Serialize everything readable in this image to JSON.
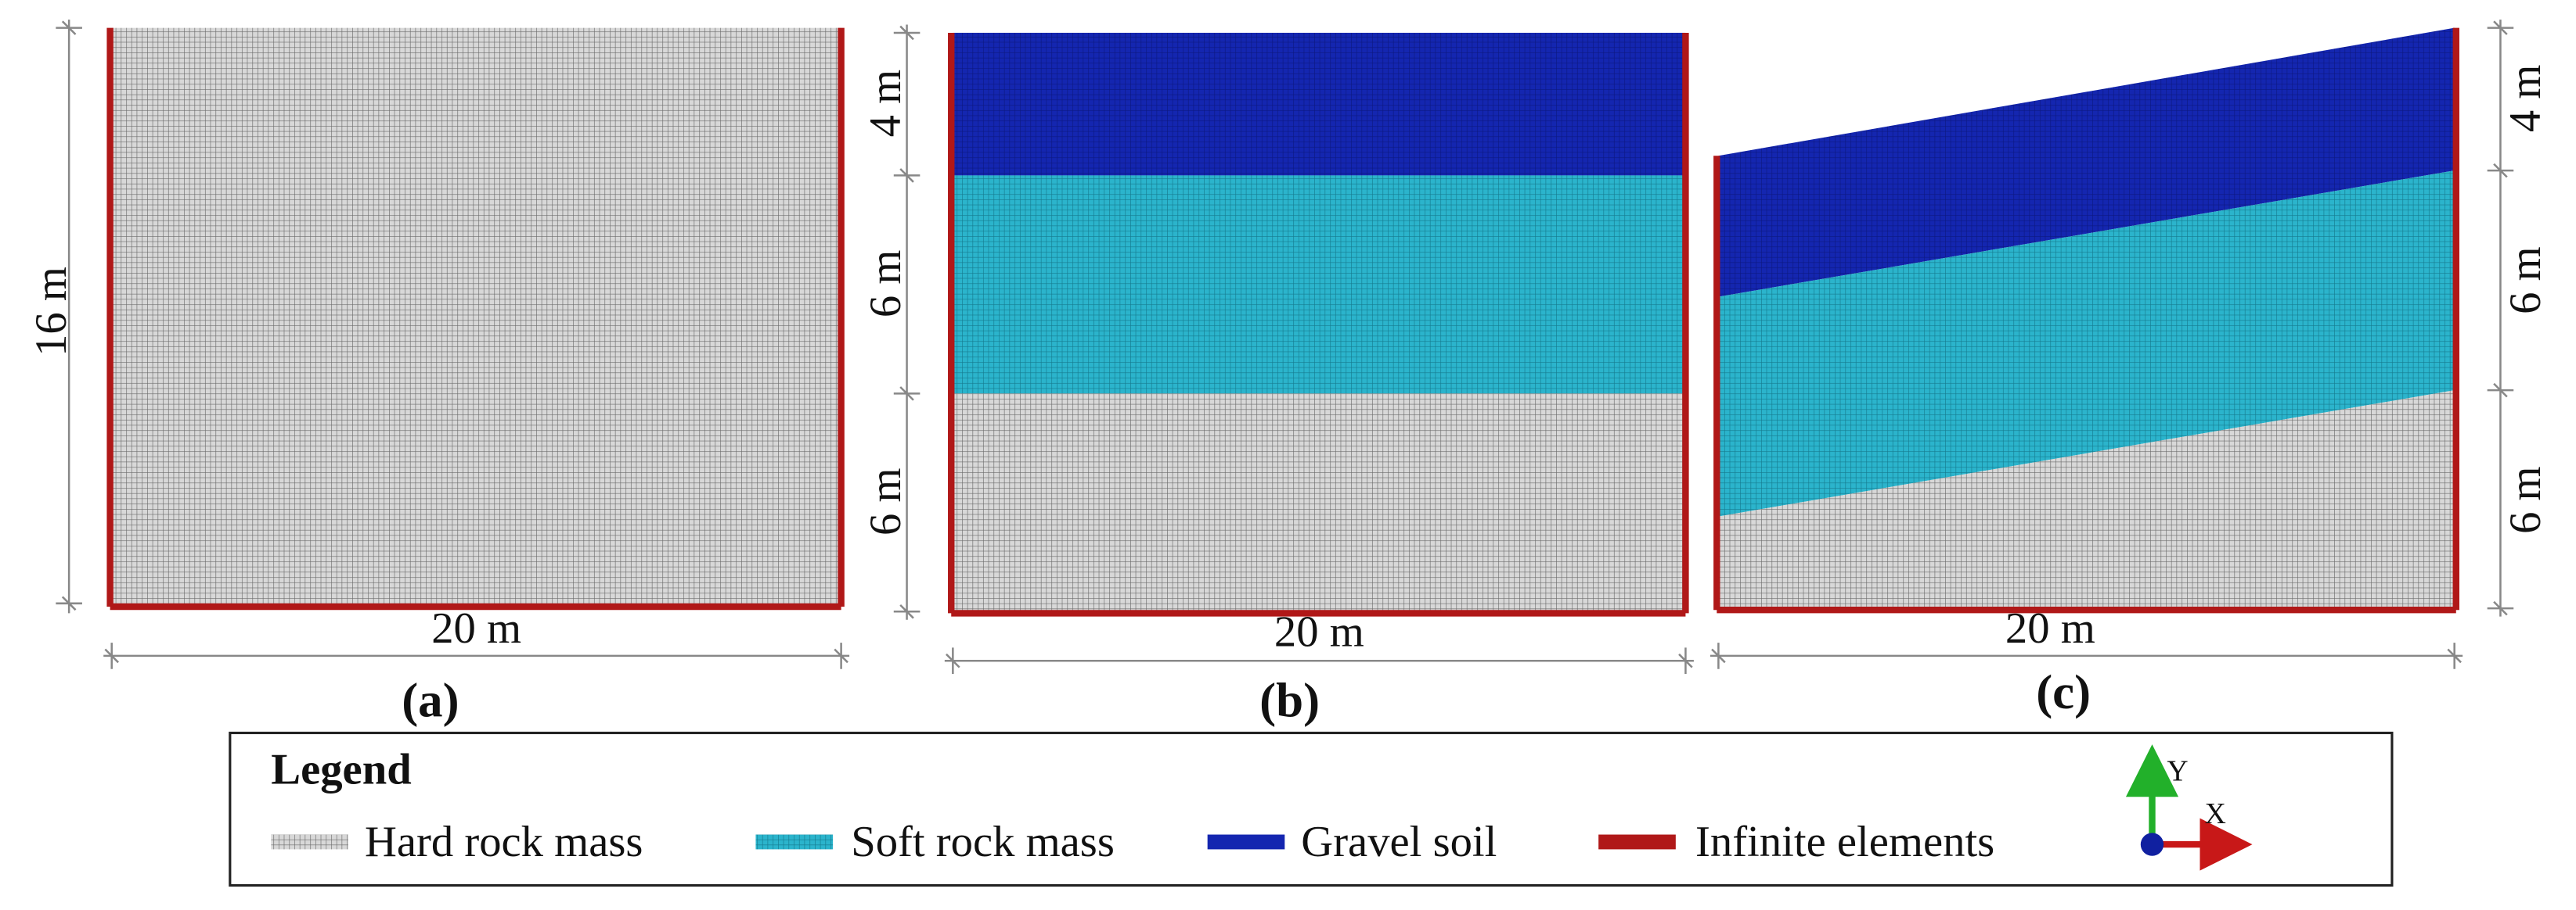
{
  "panels": [
    {
      "label": "(a)",
      "width": "20 m",
      "height": "16 m"
    },
    {
      "label": "(b)",
      "width": "20 m",
      "layers": [
        "4 m",
        "6 m",
        "6 m"
      ]
    },
    {
      "label": "(c)",
      "width": "20 m",
      "layers": [
        "4 m",
        "6 m",
        "6 m"
      ]
    }
  ],
  "legend": {
    "title": "Legend",
    "items": [
      "Hard rock mass",
      "Soft rock mass",
      "Gravel soil",
      "Infinite elements"
    ]
  },
  "axes": {
    "y": "Y",
    "x": "X"
  }
}
